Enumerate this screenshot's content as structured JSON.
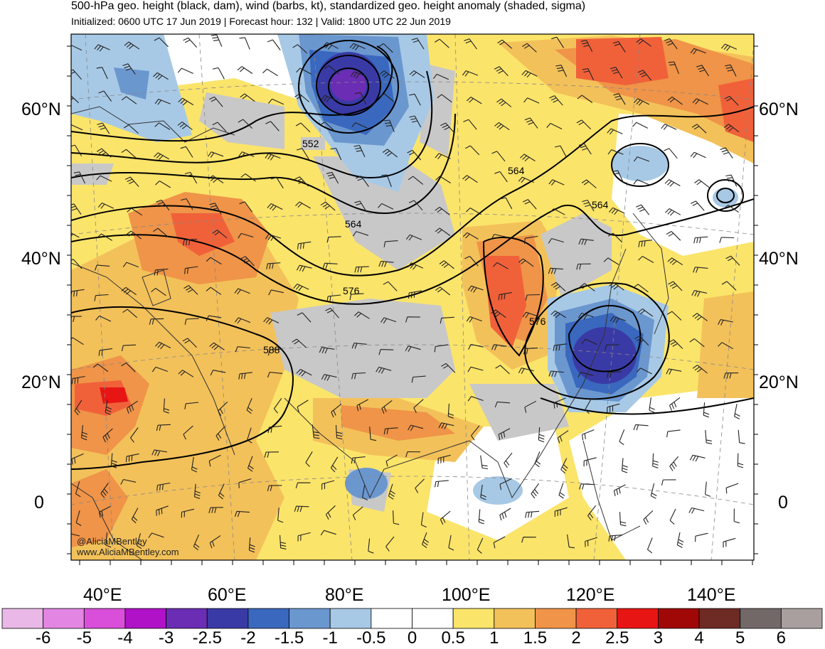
{
  "header": {
    "title": "500-hPa geo. height (black, dam), wind (barbs, kt), standardized geo. height anomaly (shaded, sigma)",
    "subtitle": "Initialized: 0600 UTC 17 Jun 2019 | Forecast hour: 132 | Valid: 1800 UTC 22 Jun 2019"
  },
  "latitude_labels": [
    "60°N",
    "40°N",
    "20°N",
    "0"
  ],
  "longitude_labels": [
    "40°E",
    "60°E",
    "80°E",
    "100°E",
    "120°E",
    "140°E"
  ],
  "contour_labels": [
    "552",
    "564",
    "564",
    "564",
    "576",
    "576",
    "588"
  ],
  "credit": {
    "handle": "@AliciaMBentley",
    "site": "www.AliciaMBentley.com"
  },
  "colorbar": {
    "labels": [
      "-6",
      "-5",
      "-4",
      "-3",
      "-2.5",
      "-2",
      "-1.5",
      "-1",
      "-0.5",
      "0",
      "0.5",
      "1",
      "1.5",
      "2",
      "2.5",
      "3",
      "4",
      "5",
      "6"
    ],
    "colors": [
      "#e9b8e6",
      "#e386e3",
      "#d94fd9",
      "#b012c8",
      "#6a2db3",
      "#3a3aa6",
      "#3a68be",
      "#6b97cf",
      "#a7c9e6",
      "#ffffff",
      "#ffffff",
      "#fbe46a",
      "#f3c15a",
      "#ef9448",
      "#f0613a",
      "#e81515",
      "#a00808",
      "#6e2a25",
      "#736868",
      "#a99f9f"
    ]
  },
  "colors": {
    "grey_land": "#c8c8c8",
    "yellow": "#fbe46a",
    "orange1": "#f3c15a",
    "orange2": "#ef9448",
    "redorange": "#f0613a",
    "red": "#e81515",
    "blue_light": "#a7c9e6",
    "blue_mid": "#6b97cf",
    "blue_dark": "#3a3aa6",
    "purple": "#6a2db3"
  }
}
